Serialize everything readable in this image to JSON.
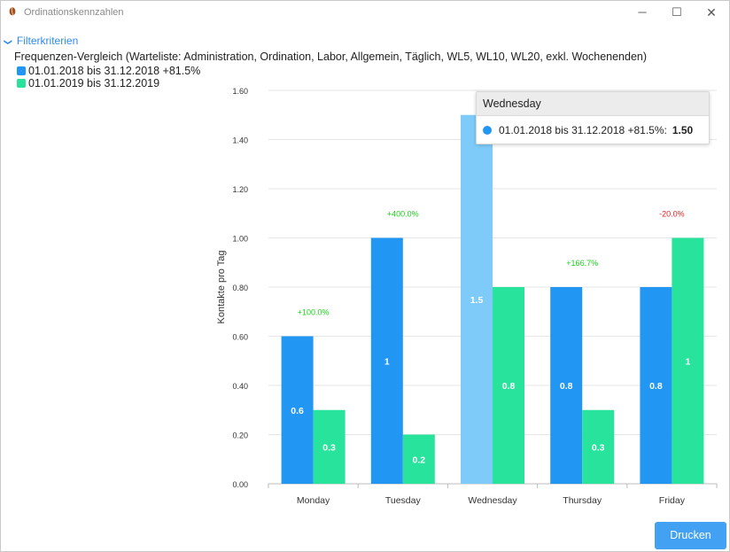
{
  "window": {
    "title": "Ordinationskennzahlen",
    "minimize": "─",
    "maximize": "☐",
    "close": "✕"
  },
  "filter": {
    "label": "Filterkriterien",
    "chevron": "❯"
  },
  "chart_title": "Frequenzen-Vergleich (Warteliste: Administration, Ordination, Labor, Allgemein, Täglich, WL5, WL10, WL20, exkl. Wochenenden)",
  "colors": {
    "series1": "#2196f3",
    "series1_highlight": "#7ecbfa",
    "series2": "#27e39c",
    "positive": "#19d119",
    "negative": "#e82020",
    "accent": "#42a1f2"
  },
  "chart_data": {
    "type": "bar",
    "categories": [
      "Monday",
      "Tuesday",
      "Wednesday",
      "Thursday",
      "Friday"
    ],
    "series": [
      {
        "name": "01.01.2018 bis 31.12.2018 +81.5%",
        "values": [
          0.6,
          1,
          1.5,
          0.8,
          0.8
        ],
        "labels": [
          "0.6",
          "1",
          "1.5",
          "0.8",
          "0.8"
        ],
        "color": "#2196f3"
      },
      {
        "name": "01.01.2019 bis 31.12.2019",
        "values": [
          0.3,
          0.2,
          0.8,
          0.3,
          1
        ],
        "labels": [
          "0.3",
          "0.2",
          "0.8",
          "0.3",
          "1"
        ],
        "color": "#27e39c"
      }
    ],
    "annotations": [
      "+100.0%",
      "+400.0%",
      "",
      "+166.7%",
      "-20.0%"
    ],
    "ylabel": "Kontakte pro Tag",
    "xlabel": "",
    "ylim": [
      0,
      1.6
    ],
    "yticks": [
      "0.00",
      "0.20",
      "0.40",
      "0.60",
      "0.80",
      "1.00",
      "1.20",
      "1.40",
      "1.60"
    ],
    "grid": true,
    "highlighted_category": "Wednesday"
  },
  "tooltip": {
    "title": "Wednesday",
    "series": "01.01.2018 bis 31.12.2018 +81.5%:",
    "value": "1.50"
  },
  "print_button": "Drucken"
}
